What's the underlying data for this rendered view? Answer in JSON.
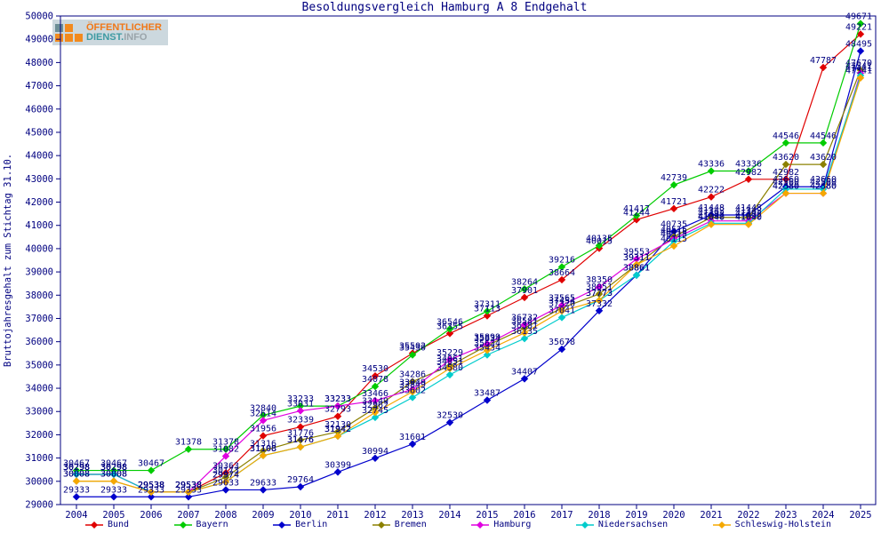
{
  "title": "Besoldungsvergleich Hamburg A 8 Endgehalt",
  "logo": {
    "line1": "ÖFFENTLICHER",
    "line2a": "DIENST.",
    "line2b": "INFO"
  },
  "chart_data": {
    "type": "line",
    "title": "Besoldungsvergleich Hamburg A 8 Endgehalt",
    "ylabel": "Bruttojahresgehalt zum Stichtag 31.10.",
    "xlabel": "",
    "ylim": [
      29000,
      50000
    ],
    "y_tick_step": 1000,
    "grid": false,
    "legend_position": "bottom",
    "point_labels": true,
    "axis_color": "#000080",
    "label_color": "#000080",
    "x": [
      2004,
      2005,
      2006,
      2007,
      2008,
      2009,
      2010,
      2011,
      2012,
      2013,
      2014,
      2015,
      2016,
      2017,
      2018,
      2019,
      2020,
      2021,
      2022,
      2023,
      2024,
      2025
    ],
    "series": [
      {
        "name": "Bund",
        "color": "#e00000",
        "values": [
          30298,
          30298,
          29538,
          29538,
          30363,
          31956,
          32339,
          32793,
          34530,
          35502,
          36355,
          37113,
          37901,
          38664,
          40015,
          41244,
          41721,
          42222,
          42982,
          42982,
          47787,
          49221
        ]
      },
      {
        "name": "Bayern",
        "color": "#00cc00",
        "values": [
          30467,
          30467,
          30467,
          31378,
          31378,
          32840,
          33233,
          33233,
          34078,
          35430,
          36546,
          37311,
          38264,
          39216,
          40135,
          41417,
          42739,
          43336,
          43336,
          44546,
          44546,
          49671
        ]
      },
      {
        "name": "Berlin",
        "color": "#0000cc",
        "values": [
          29333,
          29333,
          29333,
          29333,
          29633,
          29633,
          29764,
          30399,
          30994,
          31601,
          32530,
          33487,
          34407,
          35678,
          37332,
          38861,
          40735,
          41448,
          41448,
          42660,
          42660,
          48495
        ]
      },
      {
        "name": "Bremen",
        "color": "#8b8000",
        "values": [
          30008,
          30008,
          29538,
          29538,
          30173,
          31316,
          31776,
          32130,
          33149,
          34286,
          34961,
          35834,
          36581,
          37454,
          38051,
          39311,
          40515,
          41342,
          41342,
          43620,
          43620,
          47670
        ]
      },
      {
        "name": "Hamburg",
        "color": "#e000e0",
        "values": [
          30298,
          30298,
          29538,
          29538,
          31082,
          32614,
          33031,
          33233,
          33466,
          33949,
          35229,
          35899,
          36732,
          37565,
          38350,
          39553,
          40415,
          41192,
          41192,
          42380,
          42380,
          47541
        ]
      },
      {
        "name": "Niedersachsen",
        "color": "#00cccc",
        "values": [
          30298,
          30298,
          29538,
          29538,
          29974,
          31108,
          31476,
          31942,
          32745,
          33602,
          34580,
          35434,
          36135,
          37041,
          37773,
          38861,
          40315,
          41092,
          41092,
          42560,
          42560,
          47441
        ]
      },
      {
        "name": "Schleswig-Holstein",
        "color": "#f5a800",
        "values": [
          30008,
          30008,
          29538,
          29538,
          29974,
          31108,
          31476,
          31942,
          32962,
          33849,
          34851,
          35634,
          36381,
          37320,
          37773,
          39311,
          40115,
          41040,
          41040,
          42380,
          42380,
          47341
        ]
      }
    ]
  }
}
